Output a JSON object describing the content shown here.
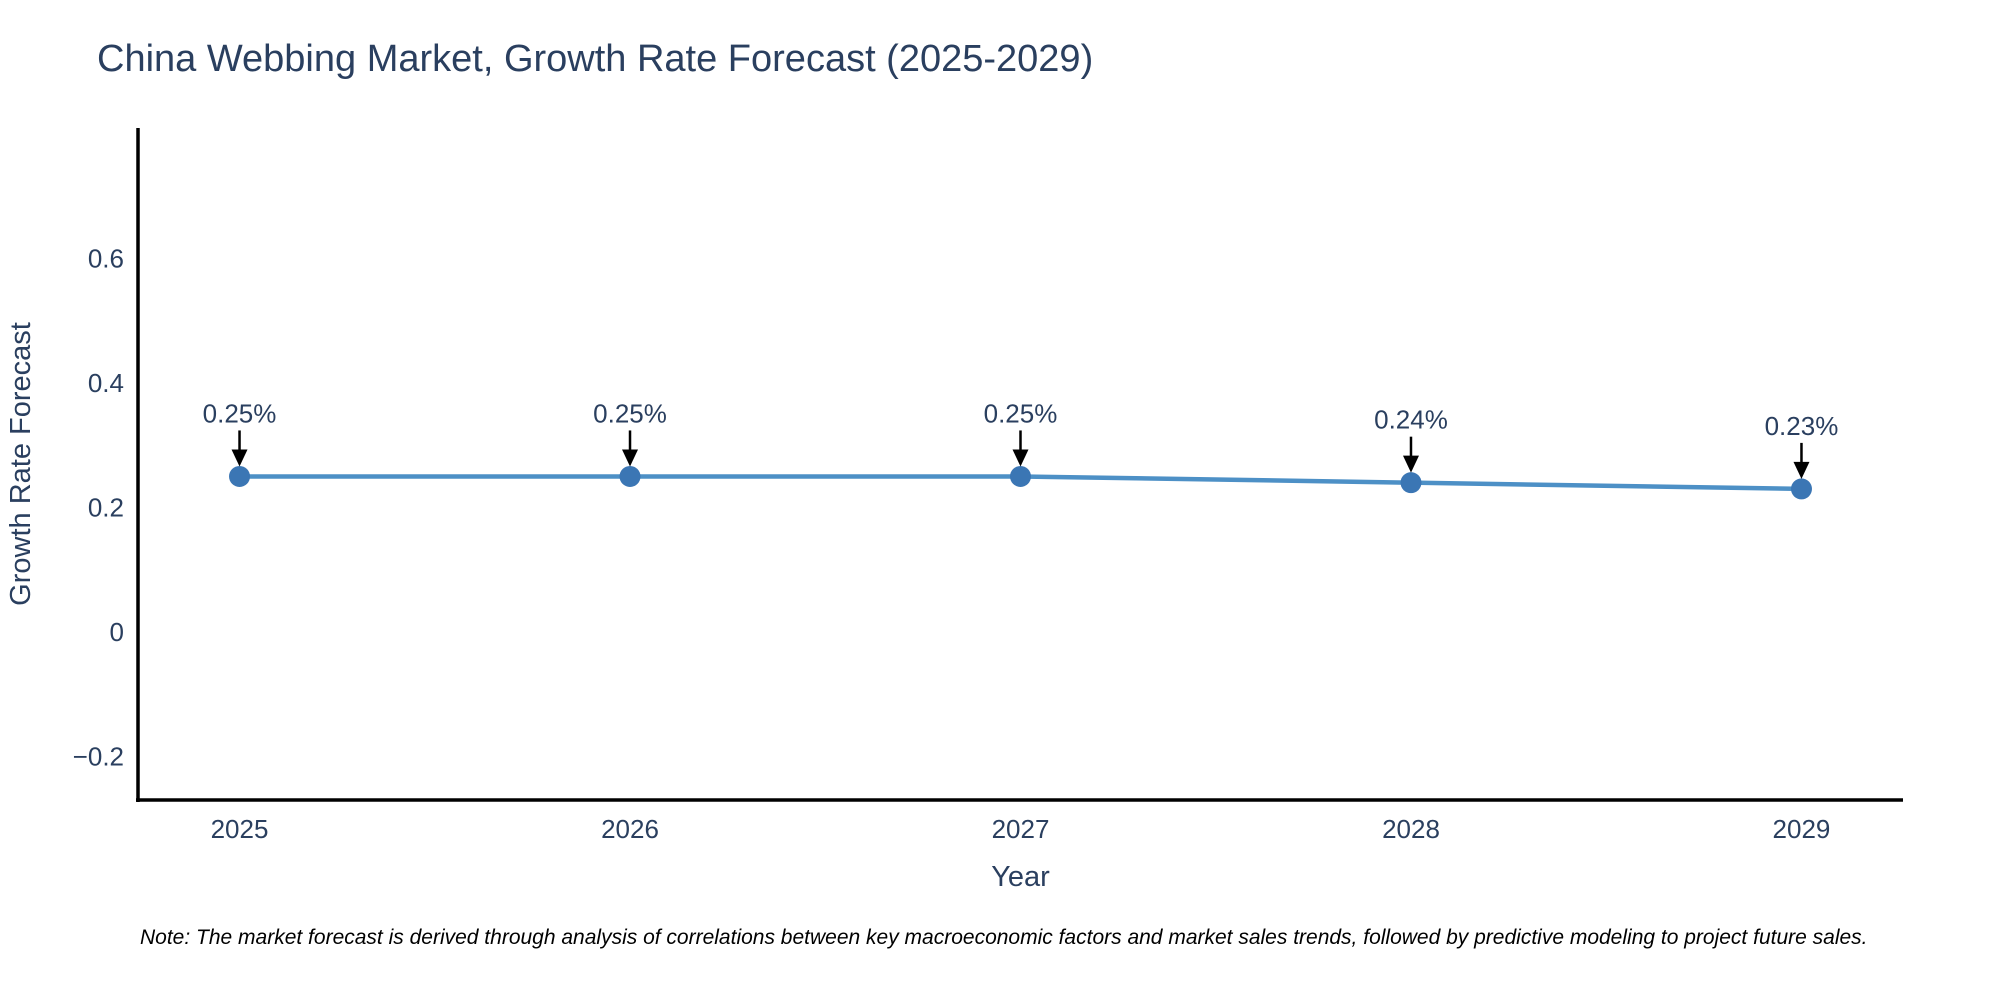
{
  "chart_data": {
    "type": "line",
    "title": "China Webbing Market, Growth Rate Forecast (2025-2029)",
    "xlabel": "Year",
    "ylabel": "Growth Rate Forecast",
    "x": [
      2025,
      2026,
      2027,
      2028,
      2029
    ],
    "x_tick_labels": [
      "2025",
      "2026",
      "2027",
      "2028",
      "2029"
    ],
    "series": [
      {
        "name": "Growth Rate Forecast",
        "values": [
          0.25,
          0.25,
          0.25,
          0.24,
          0.23
        ]
      }
    ],
    "point_labels": [
      "0.25%",
      "0.25%",
      "0.25%",
      "0.24%",
      "0.23%"
    ],
    "y_ticks": [
      -0.2,
      0,
      0.2,
      0.4,
      0.6
    ],
    "y_tick_labels": [
      "−0.2",
      "0",
      "0.2",
      "0.4",
      "0.6"
    ],
    "xlim": [
      2024.74,
      2029.26
    ],
    "ylim": [
      -0.27,
      0.81
    ],
    "grid": false,
    "legend": "none",
    "line_color": "#4d90c6",
    "marker_color": "#3b76b4",
    "axis_color": "#000000",
    "text_color": "#2a3f5f",
    "annotation_color": "#2a3f5f",
    "arrow_color": "#000000"
  },
  "note": "Note: The market forecast is derived through analysis of correlations between key macroeconomic factors and market sales trends, followed by predictive modeling to project future sales."
}
